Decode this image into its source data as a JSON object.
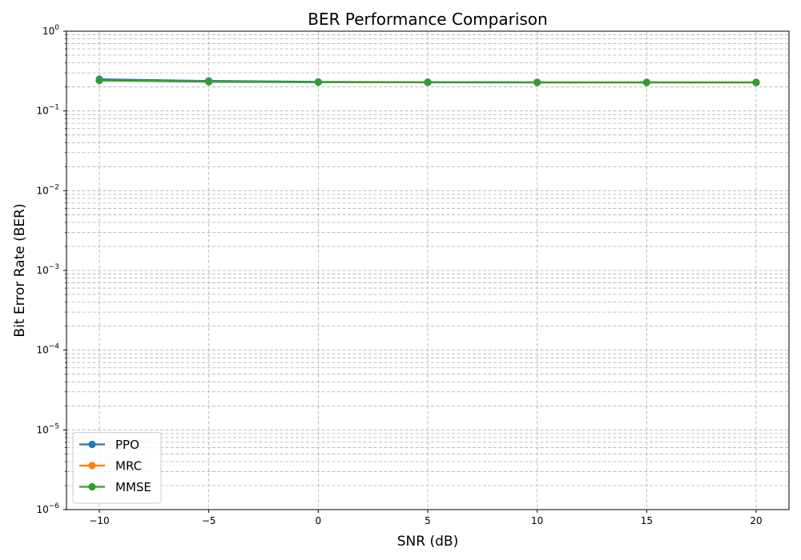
{
  "chart_data": {
    "type": "line",
    "title": "BER Performance Comparison",
    "xlabel": "SNR (dB)",
    "ylabel": "Bit Error Rate (BER)",
    "yscale": "log",
    "xlim": [
      -11.5,
      21.5
    ],
    "ylim": [
      1e-06,
      1
    ],
    "x_ticks": [
      -10,
      -5,
      0,
      5,
      10,
      15,
      20
    ],
    "x_tick_labels": [
      "−10",
      "−5",
      "0",
      "5",
      "10",
      "15",
      "20"
    ],
    "y_ticks": [
      {
        "value": 1e-06,
        "base": "10",
        "exp": "−6"
      },
      {
        "value": 1e-05,
        "base": "10",
        "exp": "−5"
      },
      {
        "value": 0.0001,
        "base": "10",
        "exp": "−4"
      },
      {
        "value": 0.001,
        "base": "10",
        "exp": "−3"
      },
      {
        "value": 0.01,
        "base": "10",
        "exp": "−2"
      },
      {
        "value": 0.1,
        "base": "10",
        "exp": "−1"
      },
      {
        "value": 1,
        "base": "10",
        "exp": "0"
      }
    ],
    "grid": true,
    "legend_position": "lower-left",
    "x": [
      -10,
      -5,
      0,
      5,
      10,
      15,
      20
    ],
    "series": [
      {
        "name": "PPO",
        "color": "#1f77b4",
        "values": [
          0.25,
          0.238,
          0.232,
          0.23,
          0.229,
          0.229,
          0.229
        ]
      },
      {
        "name": "MRC",
        "color": "#ff7f0e",
        "values": [
          0.242,
          0.233,
          0.23,
          0.229,
          0.228,
          0.228,
          0.228
        ]
      },
      {
        "name": "MMSE",
        "color": "#2ca02c",
        "values": [
          0.241,
          0.232,
          0.229,
          0.228,
          0.227,
          0.227,
          0.227
        ]
      }
    ]
  }
}
